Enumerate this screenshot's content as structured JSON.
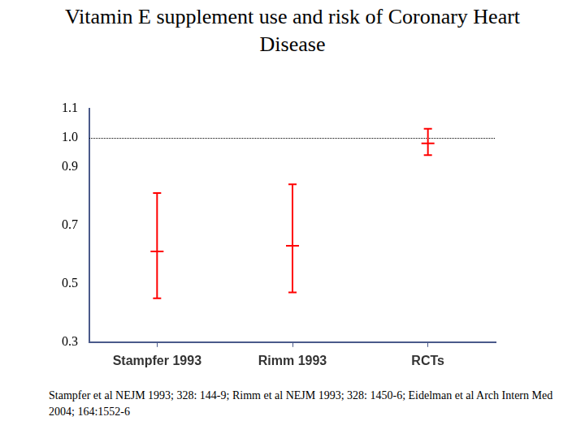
{
  "chart_data": {
    "type": "line",
    "title": "Vitamin E supplement use and risk of Coronary Heart Disease",
    "categories": [
      "Stampfer 1993",
      "Rimm 1993",
      "RCTs"
    ],
    "values": [
      0.61,
      0.63,
      0.98
    ],
    "ci_low": [
      0.45,
      0.47,
      0.94
    ],
    "ci_high": [
      0.81,
      0.84,
      1.03
    ],
    "color": "#ff0000",
    "marker": "dash",
    "ylim": [
      0.3,
      1.1
    ],
    "yticks": [
      0.3,
      0.5,
      0.7,
      {
        "value": 1,
        "label": "1.0"
      },
      0.9,
      1.1
    ],
    "reference_line": 1,
    "grid": false,
    "footnote": "Stampfer et al NEJM 1993; 328: 144-9;  Rimm et al NEJM 1993; 328: 1450-6;  Eidelman et al Arch Intern Med 2004; 164:1552-6"
  }
}
